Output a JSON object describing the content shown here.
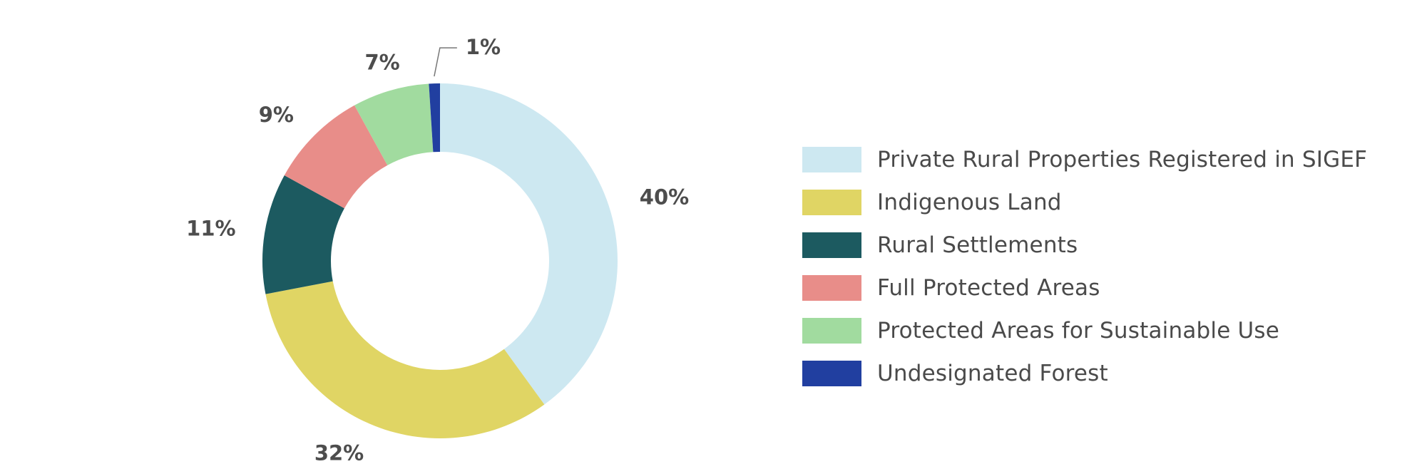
{
  "chart_data": {
    "type": "pie",
    "donut": true,
    "title": "",
    "legend_position": "right",
    "series": [
      {
        "name": "Private Rural Properties Registered in SIGEF",
        "value": 40,
        "label": "40%",
        "color": "#cde8f1"
      },
      {
        "name": "Indigenous Land",
        "value": 32,
        "label": "32%",
        "color": "#e0d564"
      },
      {
        "name": "Rural Settlements",
        "value": 11,
        "label": "11%",
        "color": "#1c5a60"
      },
      {
        "name": "Full Protected Areas",
        "value": 9,
        "label": "9%",
        "color": "#e88d89"
      },
      {
        "name": "Protected Areas for Sustainable Use",
        "value": 7,
        "label": "7%",
        "color": "#a1db9f"
      },
      {
        "name": "Undesignated Forest",
        "value": 1,
        "label": "1%",
        "color": "#213fa0"
      }
    ]
  }
}
